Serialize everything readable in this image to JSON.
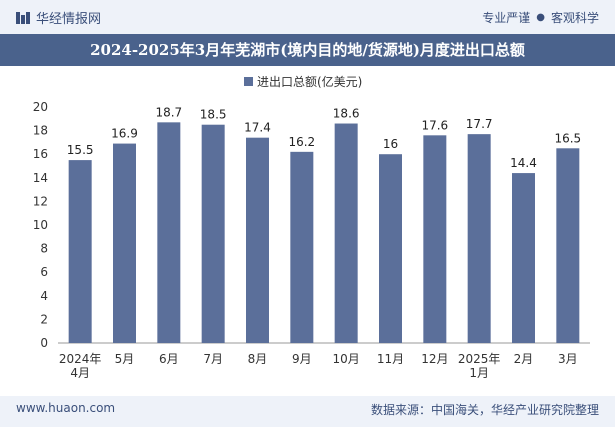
{
  "header": {
    "brand": "华经情报网",
    "tagline_left": "专业严谨",
    "tagline_right": "客观科学"
  },
  "footer": {
    "website": "www.huaon.com",
    "source": "数据来源：中国海关，华经产业研究院整理"
  },
  "chart_data": {
    "type": "bar",
    "title": "2024-2025年3月年芜湖市(境内目的地/货源地)月度进出口总额",
    "legend": "进出口总额(亿美元)",
    "categories": [
      [
        "2024年",
        "4月"
      ],
      [
        "5月"
      ],
      [
        "6月"
      ],
      [
        "7月"
      ],
      [
        "8月"
      ],
      [
        "9月"
      ],
      [
        "10月"
      ],
      [
        "11月"
      ],
      [
        "12月"
      ],
      [
        "2025年",
        "1月"
      ],
      [
        "2月"
      ],
      [
        "3月"
      ]
    ],
    "values": [
      15.5,
      16.9,
      18.7,
      18.5,
      17.4,
      16.2,
      18.6,
      16,
      17.6,
      17.7,
      14.4,
      16.5
    ],
    "value_labels": [
      "15.5",
      "16.9",
      "18.7",
      "18.5",
      "17.4",
      "16.2",
      "18.6",
      "16",
      "17.6",
      "17.7",
      "14.4",
      "16.5"
    ],
    "ylim": [
      0,
      20
    ],
    "yticks": [
      0,
      2,
      4,
      6,
      8,
      10,
      12,
      14,
      16,
      18,
      20
    ],
    "bar_color": "#5b6f9a"
  }
}
